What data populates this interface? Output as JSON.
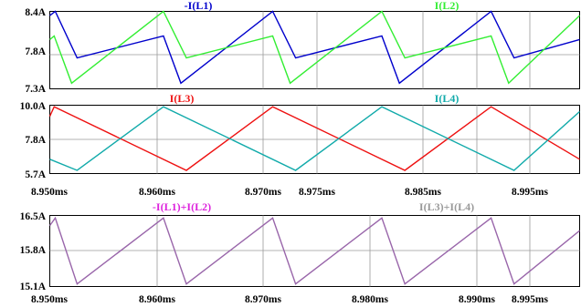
{
  "chart_data": [
    {
      "type": "line",
      "title": "",
      "xlabel": "",
      "ylabel": "",
      "xlim": [
        8.95,
        8.9985
      ],
      "ylim": [
        7.3,
        8.4
      ],
      "yticks": [
        "8.4A",
        "7.8A",
        "7.3A"
      ],
      "xticks": [],
      "grid": true,
      "series": [
        {
          "name": "-I(L1)",
          "color": "#0000cc",
          "x": [
            8.95,
            8.9505,
            8.9525,
            8.9604,
            8.962,
            8.9704,
            8.9725,
            8.9804,
            8.982,
            8.9904,
            8.9925,
            8.9985
          ],
          "y": [
            8.34,
            8.4,
            7.74,
            8.05,
            7.38,
            8.4,
            7.74,
            8.05,
            7.38,
            8.4,
            7.74,
            8.0
          ]
        },
        {
          "name": "I(L2)",
          "color": "#33ee33",
          "x": [
            8.95,
            8.9504,
            8.952,
            8.9604,
            8.9625,
            8.9704,
            8.972,
            8.9804,
            8.9825,
            8.9904,
            8.992,
            8.9985
          ],
          "y": [
            8.0,
            8.05,
            7.38,
            8.4,
            7.74,
            8.05,
            7.38,
            8.4,
            7.74,
            8.05,
            7.38,
            8.34
          ]
        }
      ]
    },
    {
      "type": "line",
      "title": "",
      "xlabel": "",
      "ylabel": "",
      "xlim": [
        8.95,
        8.9985
      ],
      "ylim": [
        5.7,
        10.0
      ],
      "yticks": [
        "10.0A",
        "7.8A",
        "5.7A"
      ],
      "xticks": [
        "8.950ms",
        "8.960ms",
        "8.970ms",
        "8.975ms",
        "8.985ms",
        "8.995ms"
      ],
      "grid": true,
      "series": [
        {
          "name": "I(L3)",
          "color": "#ee1111",
          "x": [
            8.95,
            8.9504,
            8.9625,
            8.9704,
            8.9825,
            8.9904,
            8.9985
          ],
          "y": [
            9.3,
            9.9,
            5.9,
            9.9,
            5.9,
            9.9,
            6.6
          ]
        },
        {
          "name": "I(L4)",
          "color": "#11aaaa",
          "x": [
            8.95,
            8.9525,
            8.9604,
            8.9725,
            8.9804,
            8.9925,
            8.9985
          ],
          "y": [
            6.6,
            5.9,
            9.9,
            5.9,
            9.9,
            5.9,
            9.6
          ]
        }
      ]
    },
    {
      "type": "line",
      "title": "",
      "xlabel": "",
      "ylabel": "",
      "xlim": [
        8.95,
        8.9985
      ],
      "ylim": [
        15.1,
        16.5
      ],
      "yticks": [
        "16.5A",
        "15.8A",
        "15.1A"
      ],
      "xticks": [
        "8.950ms",
        "8.960ms",
        "8.970ms",
        "8.980ms",
        "8.990ms",
        "8.995ms"
      ],
      "grid": true,
      "series": [
        {
          "name": "-I(L1)+I(L2)",
          "title_color": "#dd22dd",
          "color": "#9966aa",
          "x": [
            8.95,
            8.9505,
            8.9525,
            8.9604,
            8.9625,
            8.9704,
            8.9725,
            8.9804,
            8.9825,
            8.9904,
            8.9925,
            8.9985
          ],
          "y": [
            16.3,
            16.45,
            15.15,
            16.45,
            15.15,
            16.45,
            15.15,
            16.45,
            15.15,
            16.45,
            15.15,
            16.2
          ]
        }
      ],
      "extra_titles": [
        {
          "text": "I(L3)+I(L4)",
          "color": "#999999"
        }
      ]
    }
  ]
}
